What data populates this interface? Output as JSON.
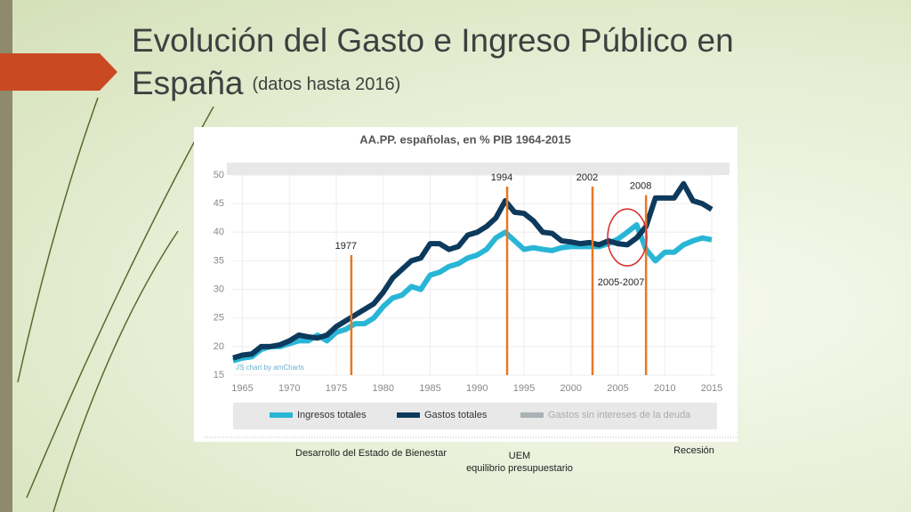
{
  "slide": {
    "title": "Evolución del Gasto e Ingreso Público en",
    "title_line2": "España",
    "subtitle": "(datos hasta 2016)",
    "captions": [
      "Desarrollo del Estado de Bienestar",
      "UEM",
      "equilibrio presupuestario",
      "Recesión"
    ]
  },
  "chart_data": {
    "type": "line",
    "title": "AA.PP. españolas, en % PIB 1964-2015",
    "credit": "JS chart by amCharts",
    "x": [
      1964,
      1965,
      1966,
      1967,
      1968,
      1969,
      1970,
      1971,
      1972,
      1973,
      1974,
      1975,
      1976,
      1977,
      1978,
      1979,
      1980,
      1981,
      1982,
      1983,
      1984,
      1985,
      1986,
      1987,
      1988,
      1989,
      1990,
      1991,
      1992,
      1993,
      1994,
      1995,
      1996,
      1997,
      1998,
      1999,
      2000,
      2001,
      2002,
      2003,
      2004,
      2005,
      2006,
      2007,
      2008,
      2009,
      2010,
      2011,
      2012,
      2013,
      2014,
      2015
    ],
    "series": [
      {
        "name": "Ingresos totales",
        "color": "#29b6d6",
        "values": [
          17.5,
          18,
          18.2,
          19.5,
          20,
          20,
          20.5,
          21,
          21,
          22,
          21,
          22.5,
          23,
          24,
          24,
          25,
          27,
          28.5,
          29,
          30.5,
          30,
          32.5,
          33,
          34,
          34.5,
          35.5,
          36,
          37,
          39,
          40,
          38.5,
          37,
          37.3,
          37,
          36.8,
          37.3,
          37.5,
          37.5,
          37.5,
          37.5,
          38,
          38.8,
          40,
          41.3,
          37,
          35,
          36.5,
          36.5,
          37.8,
          38.5,
          39,
          38.7
        ]
      },
      {
        "name": "Gastos totales",
        "color": "#0d3a5c",
        "values": [
          18,
          18.5,
          18.7,
          20,
          20,
          20.3,
          21,
          22,
          21.7,
          21.5,
          22,
          23.5,
          24.5,
          25.5,
          26.5,
          27.5,
          29.5,
          32,
          33.5,
          35,
          35.5,
          38,
          38,
          37,
          37.5,
          39.5,
          40,
          41,
          42.5,
          45.5,
          43.5,
          43.3,
          42,
          40,
          39.8,
          38.5,
          38.3,
          38,
          38.2,
          37.8,
          38.5,
          38,
          37.8,
          39,
          41,
          46,
          46,
          46,
          48.5,
          45.5,
          45,
          44
        ]
      }
    ],
    "inactive_series": [
      {
        "name": "Gastos sin intereses de la deuda",
        "color": "#a9b2b4"
      }
    ],
    "xlim": [
      1964,
      2015
    ],
    "xticks": [
      1965,
      1970,
      1975,
      1980,
      1985,
      1990,
      1995,
      2000,
      2005,
      2010,
      2015
    ],
    "ylim": [
      15,
      50
    ],
    "yticks": [
      15,
      20,
      25,
      30,
      35,
      40,
      45,
      50
    ],
    "grid": true,
    "annotations": [
      {
        "x": 1976.6,
        "top": 36,
        "label": "1977",
        "color": "#e87722"
      },
      {
        "x": 1993.2,
        "top": 48,
        "label": "1994",
        "color": "#e87722"
      },
      {
        "x": 2002.3,
        "top": 48,
        "label": "2002",
        "color": "#e87722"
      },
      {
        "x": 2008,
        "top": 46.5,
        "label": "2008",
        "color": "#e87722"
      }
    ],
    "highlight": {
      "x": 2006,
      "y": 39.1,
      "label": "2005-2007",
      "color": "#d62828"
    }
  }
}
